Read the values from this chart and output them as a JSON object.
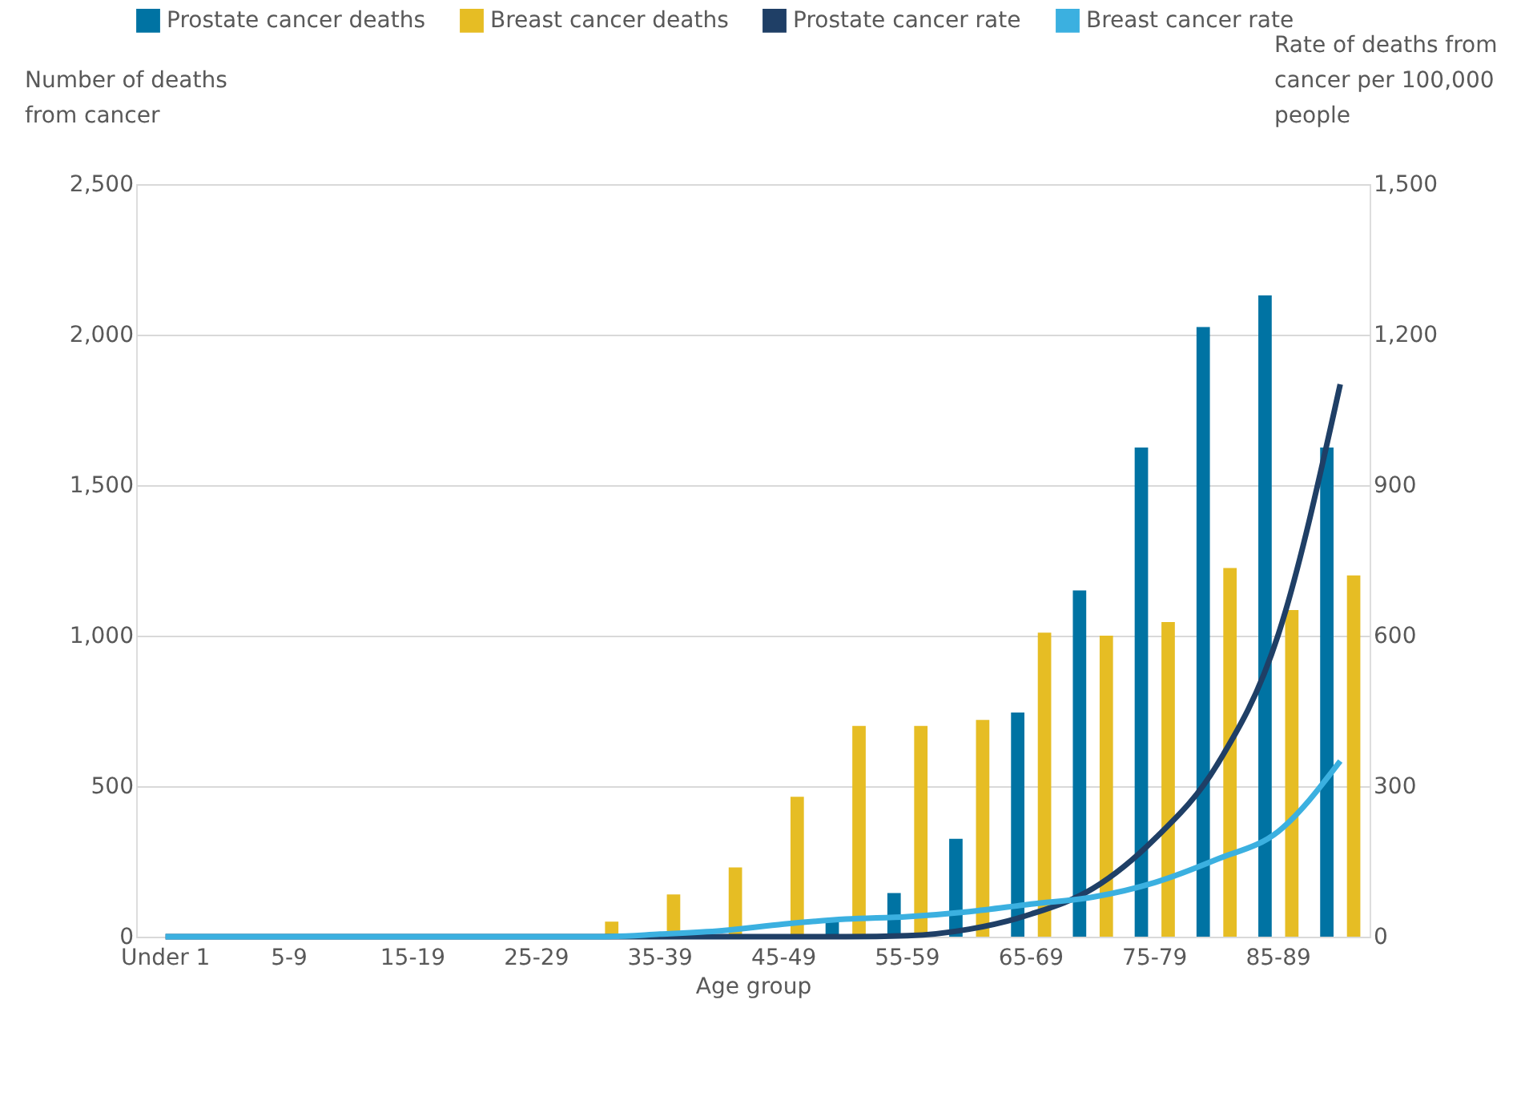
{
  "chart_data": {
    "type": "bar",
    "xlabel": "Age group",
    "ylabel": "Number of deaths from cancer",
    "y2label": "Rate of deaths from cancer per 100,000 people",
    "categories": [
      "Under 1",
      null,
      "5-9",
      null,
      "15-19",
      null,
      "25-29",
      null,
      "35-39",
      null,
      "45-49",
      null,
      "55-59",
      null,
      "65-69",
      null,
      "75-79",
      null,
      "85-89",
      null
    ],
    "series": [
      {
        "name": "Prostate cancer deaths",
        "color": "#0073a3",
        "values": [
          0,
          0,
          0,
          0,
          0,
          0,
          0,
          0,
          0,
          0,
          0,
          55,
          145,
          325,
          745,
          1150,
          1625,
          2025,
          2130,
          1625
        ]
      },
      {
        "name": "Breast cancer deaths",
        "color": "#e6bd24",
        "values": [
          0,
          0,
          0,
          0,
          0,
          0,
          0,
          50,
          140,
          230,
          465,
          700,
          700,
          720,
          1010,
          1000,
          1045,
          1225,
          1085,
          1200
        ]
      },
      {
        "name": "Prostate cancer rate",
        "color": "#1f3f66",
        "type": "line",
        "axis": "y2",
        "values": [
          0,
          0,
          0,
          0,
          0,
          0,
          0,
          0,
          0,
          0,
          0,
          0,
          2,
          15,
          45,
          96,
          195,
          341,
          603,
          1101
        ]
      },
      {
        "name": "Breast cancer rate",
        "color": "#3bb0e0",
        "type": "line",
        "axis": "y2",
        "values": [
          0,
          0,
          0,
          0,
          0,
          0,
          0,
          0,
          5,
          12,
          25,
          35,
          40,
          50,
          65,
          79,
          108,
          154,
          210,
          350
        ]
      }
    ],
    "ylim": [
      0,
      2500
    ],
    "yticks": [
      0,
      500,
      {
        "value": 1000,
        "label": "1,000"
      },
      {
        "value": 1500,
        "label": "1,500"
      },
      {
        "value": 2000,
        "label": "2,000"
      },
      {
        "value": 2500,
        "label": "2,500"
      }
    ],
    "y2lim": [
      0,
      1500
    ],
    "y2ticks": [
      0,
      300,
      600,
      900,
      {
        "value": 1200,
        "label": "1,200"
      },
      {
        "value": 1500,
        "label": "1,500"
      }
    ],
    "grid": "y",
    "legend": "top"
  }
}
